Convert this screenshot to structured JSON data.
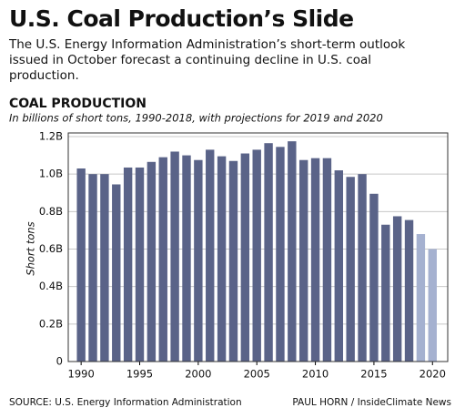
{
  "chart_data": {
    "type": "bar",
    "title": "U.S. Coal Production’s Slide",
    "subtitle": [
      "The U.S. Energy Information Administration’s short-term outlook",
      "issued in October forecast a continuing decline in U.S. coal",
      "production."
    ],
    "chart_title": "COAL PRODUCTION",
    "chart_subtitle": "In billions of short tons, 1990-2018,  with projections for 2019 and 2020",
    "y_label": "Short tons",
    "source": "SOURCE: U.S. Energy Information Administration",
    "credit": "PAUL HORN / InsideClimate News",
    "x": [
      1990,
      1991,
      1992,
      1993,
      1994,
      1995,
      1996,
      1997,
      1998,
      1999,
      2000,
      2001,
      2002,
      2003,
      2004,
      2005,
      2006,
      2007,
      2008,
      2009,
      2010,
      2011,
      2012,
      2013,
      2014,
      2015,
      2016,
      2017,
      2018,
      2019,
      2020
    ],
    "values": [
      1.03,
      1.0,
      1.0,
      0.945,
      1.035,
      1.035,
      1.065,
      1.09,
      1.12,
      1.1,
      1.075,
      1.13,
      1.095,
      1.07,
      1.11,
      1.13,
      1.165,
      1.145,
      1.175,
      1.075,
      1.085,
      1.085,
      1.02,
      0.985,
      1.0,
      0.895,
      0.73,
      0.775,
      0.755,
      0.68,
      0.6
    ],
    "colors": [
      "#5a6388",
      "#5a6388",
      "#5a6388",
      "#5a6388",
      "#5a6388",
      "#5a6388",
      "#5a6388",
      "#5a6388",
      "#5a6388",
      "#5a6388",
      "#5a6388",
      "#5a6388",
      "#5a6388",
      "#5a6388",
      "#5a6388",
      "#5a6388",
      "#5a6388",
      "#5a6388",
      "#5a6388",
      "#5a6388",
      "#5a6388",
      "#5a6388",
      "#5a6388",
      "#5a6388",
      "#5a6388",
      "#5a6388",
      "#5a6388",
      "#5a6388",
      "#5a6388",
      "#a5b1d0",
      "#a5b1d0"
    ],
    "xlim": [
      1988.9,
      2021.3
    ],
    "xticks": [
      1990,
      1995,
      2000,
      2005,
      2010,
      2015,
      2020
    ],
    "ylim": [
      0,
      1.2
    ],
    "yticks": [
      0,
      {
        "value": 0.2,
        "label": "0.2B"
      },
      {
        "value": 0.4,
        "label": "0.4B"
      },
      {
        "value": 0.6,
        "label": "0.6B"
      },
      {
        "value": 0.8,
        "label": "0.8B"
      },
      {
        "value": 1.0,
        "label": "1.0B"
      },
      {
        "value": 1.2,
        "label": "1.2B"
      }
    ],
    "grid": true
  }
}
